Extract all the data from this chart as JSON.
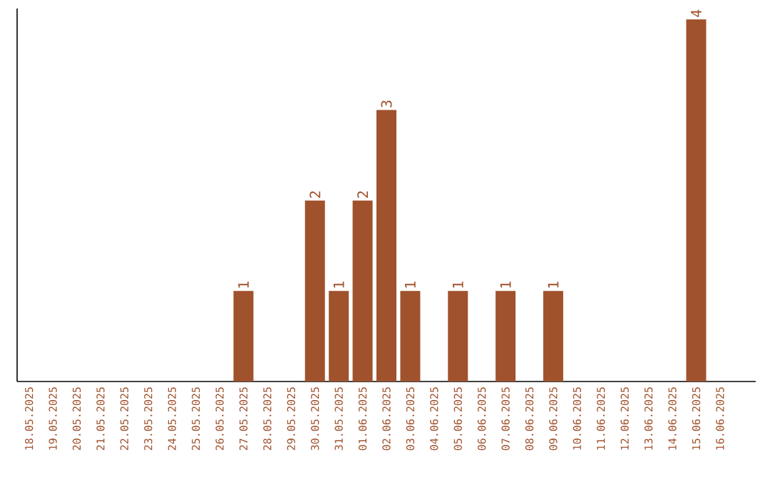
{
  "chart_data": {
    "type": "bar",
    "categories": [
      "18.05.2025",
      "19.05.2025",
      "20.05.2025",
      "21.05.2025",
      "22.05.2025",
      "23.05.2025",
      "24.05.2025",
      "25.05.2025",
      "26.05.2025",
      "27.05.2025",
      "28.05.2025",
      "29.05.2025",
      "30.05.2025",
      "31.05.2025",
      "01.06.2025",
      "02.06.2025",
      "03.06.2025",
      "04.06.2025",
      "05.06.2025",
      "06.06.2025",
      "07.06.2025",
      "08.06.2025",
      "09.06.2025",
      "10.06.2025",
      "11.06.2025",
      "12.06.2025",
      "13.06.2025",
      "14.06.2025",
      "15.06.2025",
      "16.06.2025"
    ],
    "values": [
      0,
      0,
      0,
      0,
      0,
      0,
      0,
      0,
      0,
      1,
      0,
      0,
      2,
      1,
      2,
      3,
      1,
      0,
      1,
      0,
      1,
      0,
      1,
      0,
      0,
      0,
      0,
      0,
      4,
      0
    ],
    "value_labels": [
      null,
      null,
      null,
      null,
      null,
      null,
      null,
      null,
      null,
      "1",
      null,
      null,
      "2",
      "1",
      "2",
      "3",
      "1",
      null,
      "1",
      null,
      "1",
      null,
      "1",
      null,
      null,
      null,
      null,
      null,
      "4",
      null
    ],
    "color": "#a0522d",
    "tick_labels": "x"
  }
}
